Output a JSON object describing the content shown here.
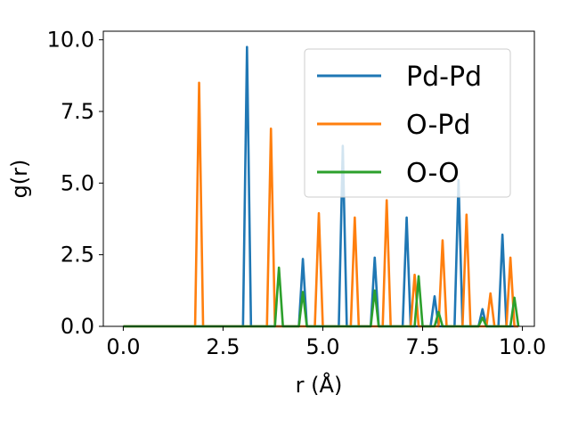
{
  "chart_data": {
    "type": "line",
    "title": "",
    "xlabel": "r (Å)",
    "ylabel": "g(r)",
    "xlim": [
      -0.5,
      10.3
    ],
    "ylim": [
      0,
      10.3
    ],
    "xticks": [
      "0.0",
      "2.5",
      "5.0",
      "7.5",
      "10.0"
    ],
    "yticks": [
      "0.0",
      "2.5",
      "5.0",
      "7.5",
      "10.0"
    ],
    "grid": false,
    "legend_position": "top-right",
    "series": [
      {
        "name": "Pd-Pd",
        "color": "#1f77b4",
        "x": [
          0.0,
          3.0,
          3.1,
          3.2,
          4.4,
          4.5,
          4.6,
          5.4,
          5.5,
          5.6,
          6.2,
          6.3,
          6.4,
          7.0,
          7.1,
          7.2,
          7.7,
          7.8,
          7.9,
          8.3,
          8.4,
          8.5,
          8.9,
          9.0,
          9.1,
          9.4,
          9.5,
          9.6,
          9.9
        ],
        "y": [
          0.0,
          0.0,
          9.75,
          0.0,
          0.0,
          2.35,
          0.0,
          0.0,
          6.3,
          0.0,
          0.0,
          2.4,
          0.0,
          0.0,
          3.8,
          0.0,
          0.0,
          1.05,
          0.0,
          0.0,
          5.1,
          0.0,
          0.0,
          0.6,
          0.0,
          0.0,
          3.2,
          0.0,
          0.0
        ]
      },
      {
        "name": "O-Pd",
        "color": "#ff7f0e",
        "x": [
          0.0,
          1.8,
          1.9,
          2.0,
          3.6,
          3.7,
          3.8,
          4.8,
          4.9,
          5.0,
          5.7,
          5.8,
          5.9,
          6.5,
          6.6,
          6.7,
          7.2,
          7.3,
          7.4,
          7.9,
          8.0,
          8.1,
          8.5,
          8.6,
          8.7,
          9.1,
          9.2,
          9.3,
          9.6,
          9.7,
          9.8,
          9.9
        ],
        "y": [
          0.0,
          0.0,
          8.5,
          0.0,
          0.0,
          6.9,
          0.0,
          0.0,
          3.95,
          0.0,
          0.0,
          3.8,
          0.0,
          0.0,
          4.4,
          0.0,
          0.0,
          1.8,
          0.0,
          0.0,
          3.0,
          0.0,
          0.0,
          3.9,
          0.0,
          0.0,
          1.15,
          0.0,
          0.0,
          2.4,
          0.0,
          0.0
        ]
      },
      {
        "name": "O-O",
        "color": "#2ca02c",
        "x": [
          0.0,
          3.8,
          3.9,
          4.0,
          4.4,
          4.5,
          4.6,
          6.2,
          6.3,
          6.4,
          7.3,
          7.4,
          7.5,
          7.8,
          7.9,
          8.0,
          8.9,
          9.0,
          9.1,
          9.7,
          9.8,
          9.9
        ],
        "y": [
          0.0,
          0.0,
          2.05,
          0.0,
          0.0,
          1.2,
          0.0,
          0.0,
          1.25,
          0.0,
          0.0,
          1.75,
          0.0,
          0.0,
          0.5,
          0.0,
          0.0,
          0.3,
          0.0,
          0.0,
          1.0,
          0.0
        ]
      }
    ]
  }
}
